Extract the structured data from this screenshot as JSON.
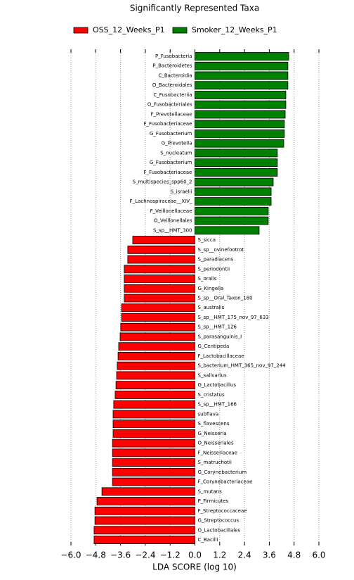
{
  "chart_data": {
    "type": "bar",
    "orientation": "horizontal",
    "title": "Significantly Represented Taxa",
    "x_label": "LDA SCORE (log 10)",
    "categories": [
      "P_Fusobacteria",
      "P_Bacteroidetes",
      "C_Bacteroidia",
      "O_Bacteroidales",
      "C_Fusobacteriia",
      "O_Fusobacteriales",
      "F_Prevotellaceae",
      "F_Fusobacteriaceae",
      "G_Fusobacterium",
      "G_Prevotella",
      "S_nucleatum",
      "G_Fusobacterium",
      "F_Fusobacteriaceae",
      "S_multispecies_spp60_2",
      "S_israelii",
      "F_Lachnospiraceae__XIV_",
      "F_Veillonellaceae",
      "O_Veillonellales",
      "S_sp__HMT_300",
      "S_sicca",
      "S_sp__ovinefootrot",
      "S_paradiacens",
      "S_periodontii",
      "S_oralis",
      "G_Kingella",
      "S_sp__Oral_Taxon_180",
      "S_australis",
      "S_sp__HMT_175_nov_97_633",
      "S_sp__HMT_126",
      "S_parasanguinis_I",
      "G_Centipeda",
      "F_Lactobacillaceae",
      "S_bacterium_HMT_365_nov_97_244",
      "S_salivarius",
      "G_Lactobacillus",
      "S_cristatus",
      "S_sp__HMT_166",
      "subflava",
      "S_flavescens",
      "G_Neisseria",
      "O_Neisseriales",
      "F_Neisseriaceae",
      "S_matruchotii",
      "G_Corynebacterium",
      "F_Corynebacteriaceae",
      "S_mutans",
      "P_Firmicutes",
      "F_Streptococcaceae",
      "G_Streptococcus",
      "O_Lactobacillales",
      "C_Bacilli"
    ],
    "series": [
      {
        "name": "OSS_12_Weeks_P1",
        "color": "#ff0000",
        "values": [
          null,
          null,
          null,
          null,
          null,
          null,
          null,
          null,
          null,
          null,
          null,
          null,
          null,
          null,
          null,
          null,
          null,
          null,
          null,
          -3.01,
          -3.25,
          -3.25,
          -3.42,
          -3.42,
          -3.42,
          -3.42,
          -3.55,
          -3.55,
          -3.59,
          -3.62,
          -3.69,
          -3.72,
          -3.76,
          -3.79,
          -3.82,
          -3.86,
          -3.93,
          -3.96,
          -3.96,
          -3.96,
          -3.99,
          -3.99,
          -3.99,
          -3.99,
          -3.99,
          -4.5,
          -4.74,
          -4.84,
          -4.84,
          -4.88,
          -4.88
        ]
      },
      {
        "name": "Smoker_12_Weeks_P1",
        "color": "#008000",
        "values": [
          4.54,
          4.5,
          4.5,
          4.5,
          4.4,
          4.4,
          4.37,
          4.33,
          4.33,
          4.3,
          3.99,
          3.99,
          3.99,
          3.79,
          3.69,
          3.69,
          3.55,
          3.55,
          3.11,
          null,
          null,
          null,
          null,
          null,
          null,
          null,
          null,
          null,
          null,
          null,
          null,
          null,
          null,
          null,
          null,
          null,
          null,
          null,
          null,
          null,
          null,
          null,
          null,
          null,
          null,
          null,
          null,
          null,
          null,
          null,
          null
        ]
      }
    ],
    "xlim": [
      -6.0,
      6.0
    ],
    "xticks": [
      {
        "value": -6.0,
        "label": "−6.0"
      },
      {
        "value": -4.8,
        "label": "−4.8"
      },
      {
        "value": -3.6,
        "label": "−3.6"
      },
      {
        "value": -2.4,
        "label": "−2.4"
      },
      {
        "value": -1.2,
        "label": "−1.2"
      },
      {
        "value": 0,
        "label": "0.0"
      },
      1.2,
      2.4,
      3.6,
      4.8,
      {
        "value": 6.0,
        "label": "6.0"
      }
    ],
    "grid": true,
    "legend": "top"
  }
}
